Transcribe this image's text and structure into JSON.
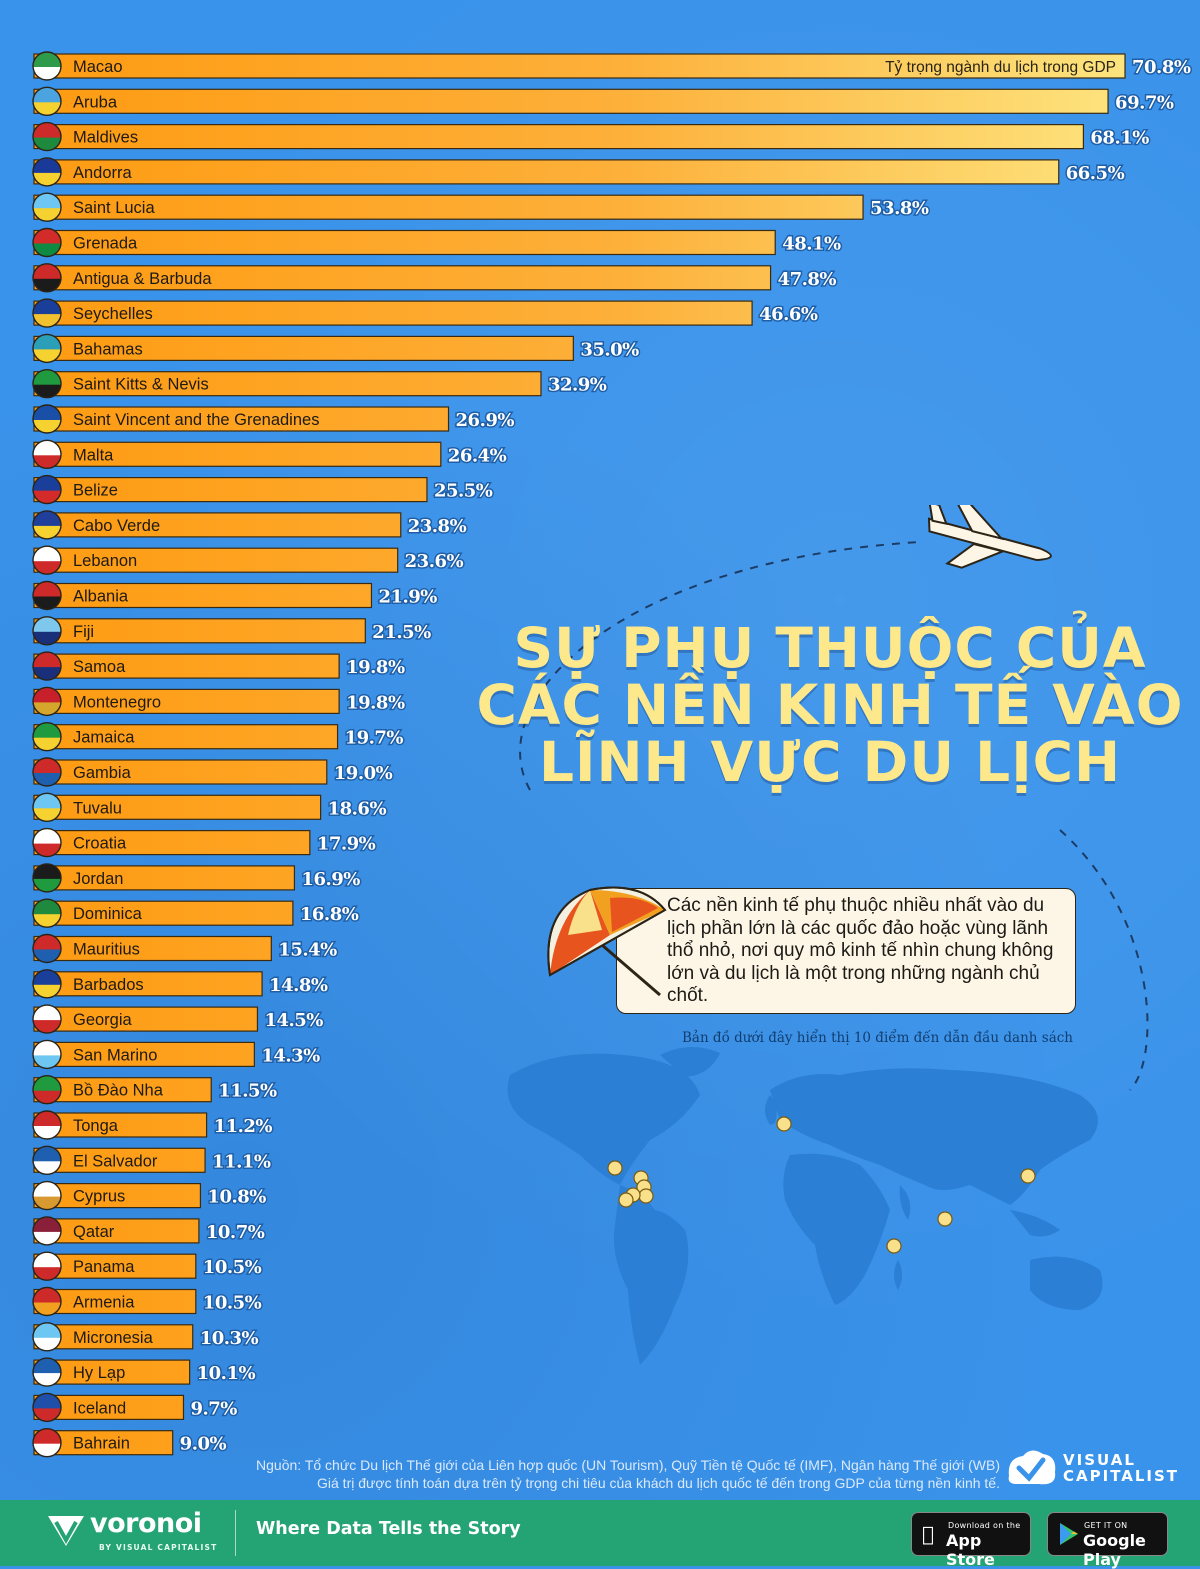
{
  "title_lines": [
    "SỰ PHỤ THUỘC CỦA",
    "CÁC NỀN KINH TẾ VÀO",
    "LĨNH VỰC DU LỊCH"
  ],
  "note": "Các nền kinh tế phụ thuộc nhiều nhất vào du lịch phần lớn là các quốc đảo hoặc vùng lãnh thổ nhỏ, nơi quy mô kinh tế nhìn chung không lớn và du lịch là một trong những ngành chủ chốt.",
  "map_caption": "Bản đồ dưới đây hiển thị 10 điểm đến dẫn đầu danh sách",
  "source_lines": [
    "Nguồn: Tổ chức Du lịch Thế giới của Liên hợp quốc (UN Tourism), Quỹ Tiền tệ Quốc tế (IMF), Ngân hàng Thế giới (WB)",
    "Giá trị được tính toán dựa trên tỷ trọng chi tiêu của khách du lịch quốc tế đến trong GDP của từng nền kinh tế."
  ],
  "brand": {
    "vc_lines": [
      "VISUAL",
      "CAPITALIST"
    ],
    "name": "voronoi",
    "sub": "BY VISUAL CAPITALIST",
    "tagline": "Where Data Tells the Story",
    "appstore_small": "Download on the",
    "appstore_big": "App Store",
    "gplay_small": "GET IT ON",
    "gplay_big": "Google Play"
  },
  "colors": {
    "background": "#3a93ea",
    "bar_start": "#fe9a10",
    "bar_end": "#fde47e",
    "title": "#fde98c",
    "footer": "#24a374",
    "map_land": "#2b7fd4",
    "map_dot": "#f9e08a"
  },
  "chart_data": {
    "type": "bar",
    "orientation": "horizontal",
    "measure_label": "Tỷ trọng ngành du lịch trong GDP",
    "unit": "%",
    "xlim": [
      0,
      70.8
    ],
    "categories": [
      "Macao",
      "Aruba",
      "Maldives",
      "Andorra",
      "Saint Lucia",
      "Grenada",
      "Antigua & Barbuda",
      "Seychelles",
      "Bahamas",
      "Saint Kitts & Nevis",
      "Saint Vincent and the Grenadines",
      "Malta",
      "Belize",
      "Cabo Verde",
      "Lebanon",
      "Albania",
      "Fiji",
      "Samoa",
      "Montenegro",
      "Jamaica",
      "Gambia",
      "Tuvalu",
      "Croatia",
      "Jordan",
      "Dominica",
      "Mauritius",
      "Barbados",
      "Georgia",
      "San Marino",
      "Bồ Đào Nha",
      "Tonga",
      "El Salvador",
      "Cyprus",
      "Qatar",
      "Panama",
      "Armenia",
      "Micronesia",
      "Hy Lạp",
      "Iceland",
      "Bahrain"
    ],
    "values": [
      70.8,
      69.7,
      68.1,
      66.5,
      53.8,
      48.1,
      47.8,
      46.6,
      35.0,
      32.9,
      26.9,
      26.4,
      25.5,
      23.8,
      23.6,
      21.9,
      21.5,
      19.8,
      19.8,
      19.7,
      19.0,
      18.6,
      17.9,
      16.9,
      16.8,
      15.4,
      14.8,
      14.5,
      14.3,
      11.5,
      11.2,
      11.1,
      10.8,
      10.7,
      10.5,
      10.5,
      10.3,
      10.1,
      9.7,
      9.0
    ],
    "value_labels": [
      "70.8%",
      "69.7%",
      "68.1%",
      "66.5%",
      "53.8%",
      "48.1%",
      "47.8%",
      "46.6%",
      "35.0%",
      "32.9%",
      "26.9%",
      "26.4%",
      "25.5%",
      "23.8%",
      "23.6%",
      "21.9%",
      "21.5%",
      "19.8%",
      "19.8%",
      "19.7%",
      "19.0%",
      "18.6%",
      "17.9%",
      "16.9%",
      "16.8%",
      "15.4%",
      "14.8%",
      "14.5%",
      "14.3%",
      "11.5%",
      "11.2%",
      "11.1%",
      "10.8%",
      "10.7%",
      "10.5%",
      "10.5%",
      "10.3%",
      "10.1%",
      "9.7%",
      "9.0%"
    ],
    "flag_colors": [
      [
        "#2e9a4a",
        "#ffffff"
      ],
      [
        "#4ba3e0",
        "#f5d22f"
      ],
      [
        "#cf2a2a",
        "#1d8a3e"
      ],
      [
        "#1a3a9a",
        "#f5d22f"
      ],
      [
        "#6ec6f2",
        "#f5d22f"
      ],
      [
        "#d32a2a",
        "#0f8a42"
      ],
      [
        "#cf2a2a",
        "#1b1b1b"
      ],
      [
        "#1a3f9a",
        "#f2c12e"
      ],
      [
        "#2c9fb8",
        "#f5d22f"
      ],
      [
        "#1f9a3e",
        "#1b1b1b"
      ],
      [
        "#1a4fa8",
        "#f5d22f"
      ],
      [
        "#ffffff",
        "#cf2a2a"
      ],
      [
        "#1a3f9a",
        "#d32a2a"
      ],
      [
        "#1f3f9a",
        "#f5d22f"
      ],
      [
        "#ffffff",
        "#cf2a2a"
      ],
      [
        "#cf2a2a",
        "#1b1b1b"
      ],
      [
        "#7ec8ee",
        "#1a2f7a"
      ],
      [
        "#cf2a2a",
        "#1a2f7a"
      ],
      [
        "#c8202a",
        "#d4a72c"
      ],
      [
        "#1f9a3e",
        "#f5d22f"
      ],
      [
        "#cf2a2a",
        "#1f5fb0"
      ],
      [
        "#6ec6f2",
        "#f5d22f"
      ],
      [
        "#ffffff",
        "#cf2a2a"
      ],
      [
        "#1b1b1b",
        "#1f9a3e"
      ],
      [
        "#1f8a3e",
        "#f5d22f"
      ],
      [
        "#cf2a2a",
        "#1f5fb0"
      ],
      [
        "#1a3f9a",
        "#f5d22f"
      ],
      [
        "#ffffff",
        "#cf2a2a"
      ],
      [
        "#ffffff",
        "#6ec6f2"
      ],
      [
        "#1f9a3e",
        "#cf2a2a"
      ],
      [
        "#cf2a2a",
        "#ffffff"
      ],
      [
        "#1f5fb0",
        "#ffffff"
      ],
      [
        "#ffffff",
        "#d89a30"
      ],
      [
        "#8a1f3a",
        "#ffffff"
      ],
      [
        "#ffffff",
        "#cf2a2a"
      ],
      [
        "#cf2a2a",
        "#f2a020"
      ],
      [
        "#6ec6f2",
        "#ffffff"
      ],
      [
        "#1f5fb0",
        "#ffffff"
      ],
      [
        "#1f4fa8",
        "#cf2a2a"
      ],
      [
        "#cf2a2a",
        "#ffffff"
      ]
    ]
  }
}
